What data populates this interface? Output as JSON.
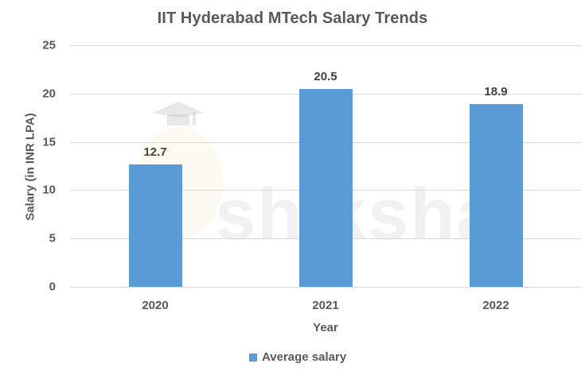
{
  "chart": {
    "title": "IIT Hyderabad MTech Salary Trends",
    "ylabel": "Salary (in INR LPA)",
    "xlabel": "Year",
    "legend": "Average salary",
    "bar_color": "#5b9bd5",
    "watermark": "shiksha",
    "yticks": [
      "0",
      "5",
      "10",
      "15",
      "20",
      "25"
    ],
    "bars": [
      {
        "year": "2020",
        "value": 12.7,
        "label": "12.7"
      },
      {
        "year": "2021",
        "value": 20.5,
        "label": "20.5"
      },
      {
        "year": "2022",
        "value": 18.9,
        "label": "18.9"
      }
    ]
  },
  "chart_data": {
    "type": "bar",
    "title": "IIT Hyderabad MTech Salary Trends",
    "xlabel": "Year",
    "ylabel": "Salary (in INR LPA)",
    "categories": [
      "2020",
      "2021",
      "2022"
    ],
    "series": [
      {
        "name": "Average salary",
        "values": [
          12.7,
          20.5,
          18.9
        ]
      }
    ],
    "ylim": [
      0,
      25
    ],
    "yticks": [
      0,
      5,
      10,
      15,
      20,
      25
    ],
    "grid": true,
    "legend_position": "bottom",
    "data_labels": true
  }
}
